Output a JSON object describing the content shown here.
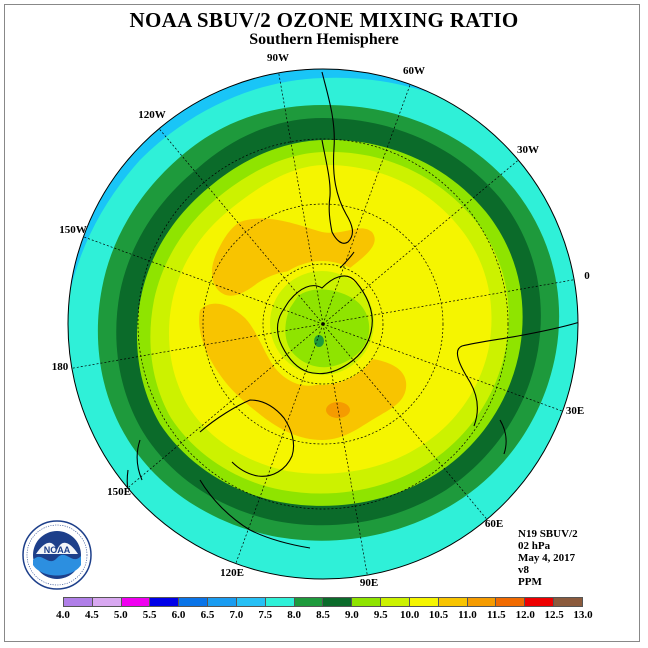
{
  "title": "NOAA SBUV/2 OZONE MIXING RATIO",
  "subtitle": "Southern Hemisphere",
  "map": {
    "projection": "south-polar-stereographic",
    "longitude_labels": [
      "90W",
      "60W",
      "30W",
      "0",
      "30E",
      "60E",
      "90E",
      "120E",
      "150E",
      "180",
      "150W",
      "120W"
    ],
    "bands": [
      {
        "range": "7.5-8.0",
        "color": "#2ff0d8"
      },
      {
        "range": "8.0-8.5",
        "color": "#1e9a3c"
      },
      {
        "range": "8.5-9.0",
        "color": "#0b6b2a"
      },
      {
        "range": "9.0-9.5",
        "color": "#8fe400"
      },
      {
        "range": "9.5-10.0",
        "color": "#ccf200"
      },
      {
        "range": "10.0-10.5",
        "color": "#f5f500"
      },
      {
        "range": "10.5-11.0",
        "color": "#f8c400"
      },
      {
        "range": "11.0-11.5",
        "color": "#f59b00"
      }
    ]
  },
  "info": {
    "satellite": "N19 SBUV/2",
    "level": "02 hPa",
    "date": "May 4, 2017",
    "version": "v8",
    "units": "PPM"
  },
  "scale": {
    "ticks": [
      "4.0",
      "4.5",
      "5.0",
      "5.5",
      "6.0",
      "6.5",
      "7.0",
      "7.5",
      "8.0",
      "8.5",
      "9.0",
      "9.5",
      "10.0",
      "10.5",
      "11.0",
      "11.5",
      "12.0",
      "12.5",
      "13.0"
    ],
    "colors": [
      "#b07fe8",
      "#d8a8f0",
      "#f000f0",
      "#0000e8",
      "#0a74e8",
      "#1a9cf0",
      "#27c0f5",
      "#2ff0d8",
      "#1e9a3c",
      "#0b6b2a",
      "#8fe400",
      "#ccf200",
      "#f5f500",
      "#f8c400",
      "#f59b00",
      "#f06a00",
      "#ee0000",
      "#8b5a3c"
    ]
  },
  "logo": {
    "text": "NOAA",
    "ring_text": "NATIONAL OCEANIC AND ATMOSPHERIC ADMINISTRATION · U.S. DEPARTMENT OF COMMERCE"
  }
}
